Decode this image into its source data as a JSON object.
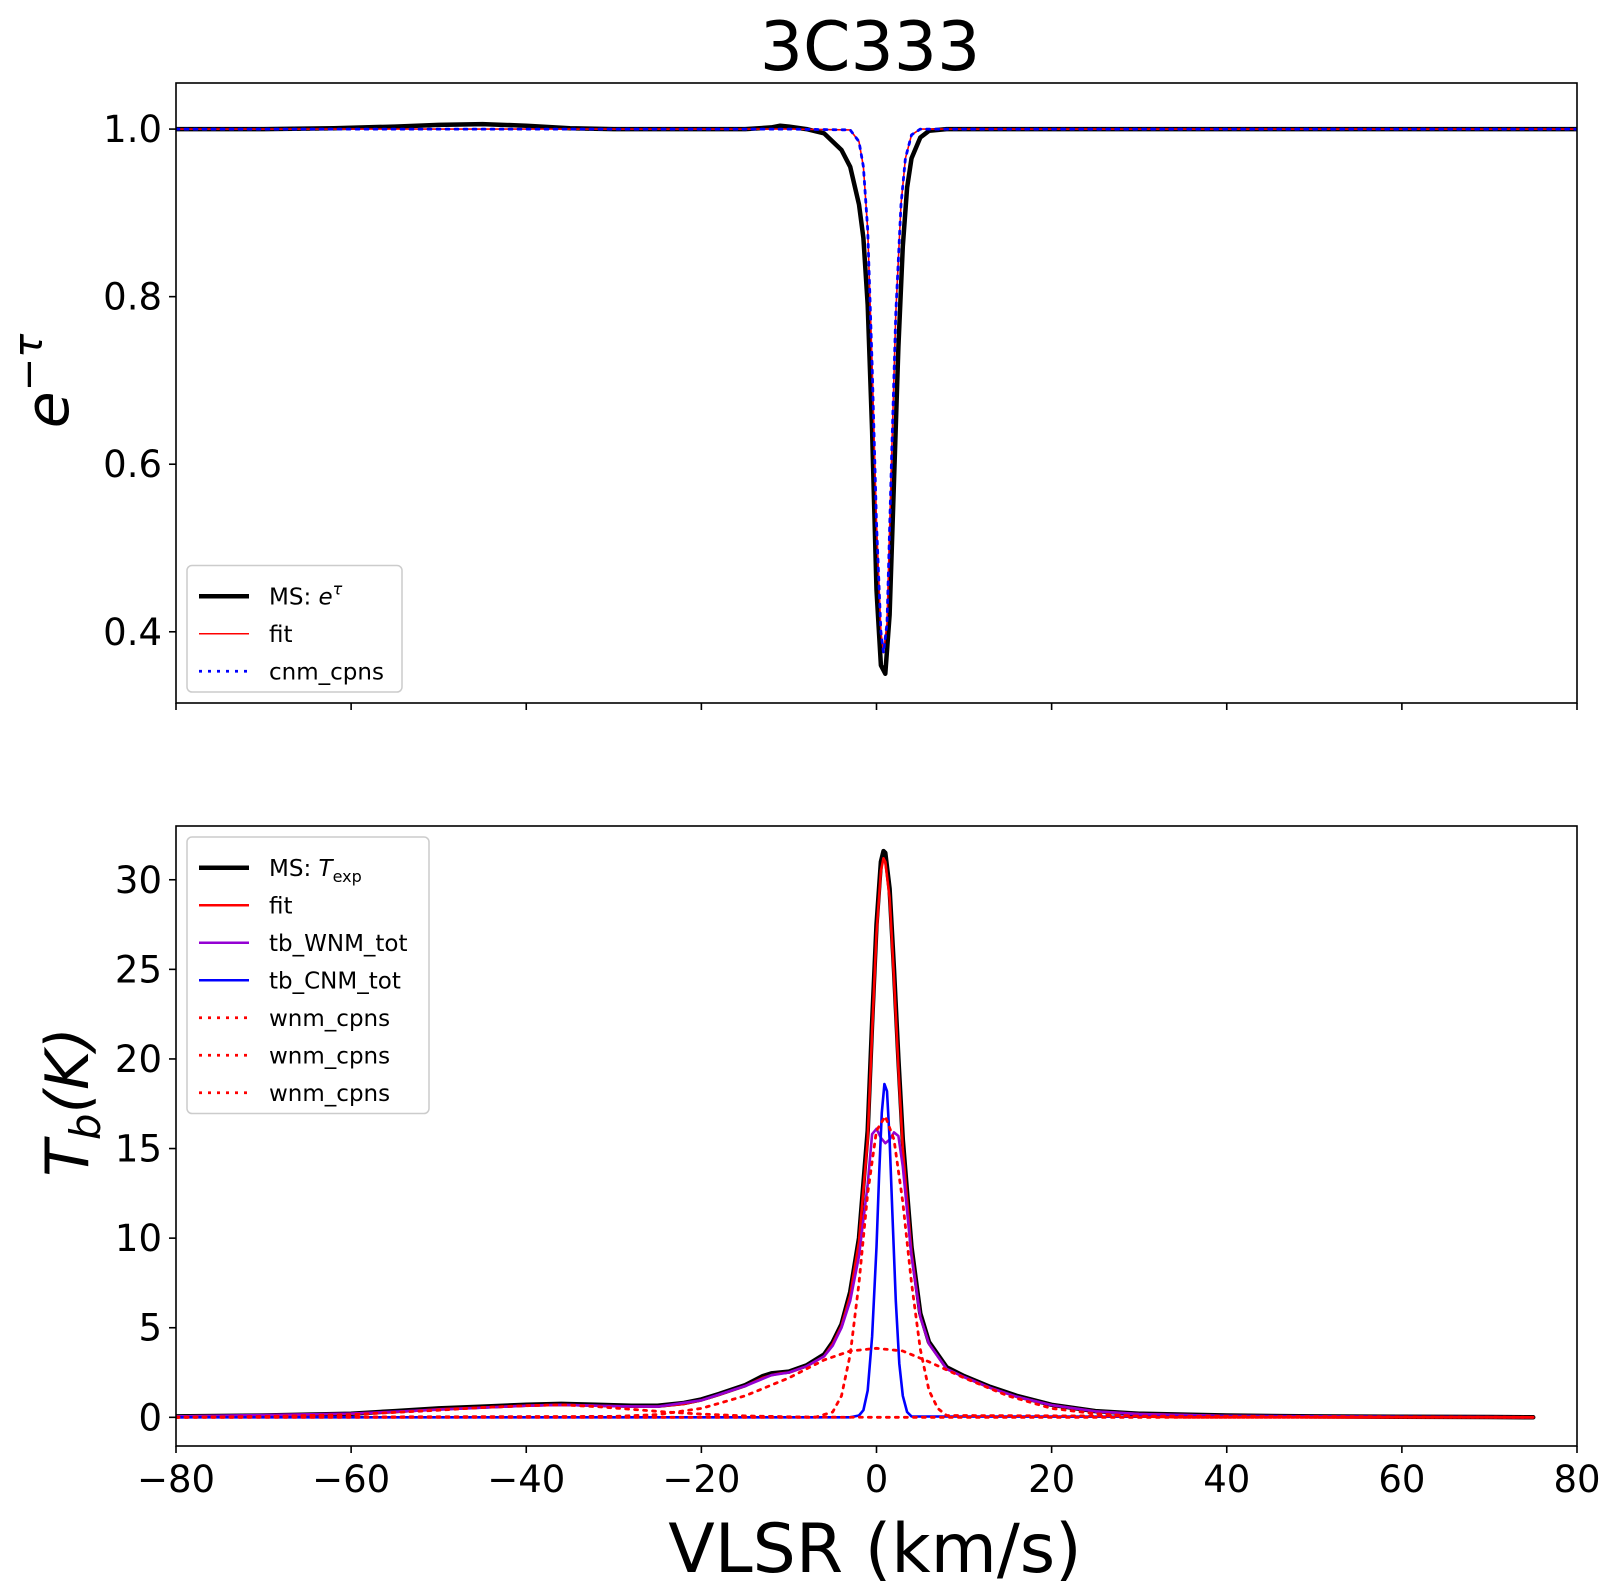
{
  "colors": {
    "ms": "#000000",
    "fit": "#ff0000",
    "cnm": "#0000ff",
    "wnm_tot": "#9400d3",
    "wnm_cpn": "#ff0000"
  },
  "chart_data": [
    {
      "type": "line",
      "title": "3C333",
      "xlabel": "",
      "ylabel": "e^{-τ}",
      "xlim": [
        -80,
        80
      ],
      "ylim": [
        0.315,
        1.055
      ],
      "xticks": [
        -80,
        -60,
        -40,
        -20,
        0,
        20,
        40,
        60,
        80
      ],
      "xtick_labels_visible": false,
      "yticks": [
        0.4,
        0.6,
        0.8,
        1.0
      ],
      "ytick_labels": [
        "0.4",
        "0.6",
        "0.8",
        "1.0"
      ],
      "grid": false,
      "legend": {
        "placement": "lower-left",
        "entries": [
          {
            "label_prefix": "MS: ",
            "label_math": "e",
            "label_sup": "τ",
            "style": "solid-thick",
            "color_key": "ms"
          },
          {
            "label": "fit",
            "style": "solid-thin",
            "color_key": "fit"
          },
          {
            "label": "cnm_cpns",
            "style": "dotted",
            "color_key": "cnm"
          }
        ]
      },
      "series": [
        {
          "name": "MS: e^τ",
          "color_key": "ms",
          "style": "solid-thick",
          "x": [
            -80,
            -70,
            -62,
            -55,
            -50,
            -45,
            -40,
            -35,
            -30,
            -25,
            -20,
            -15,
            -12,
            -11,
            -10,
            -8,
            -6,
            -4,
            -3,
            -2,
            -1.5,
            -1,
            -0.5,
            0,
            0.5,
            1,
            1.5,
            2,
            2.5,
            3,
            3.5,
            4,
            5,
            6,
            8,
            10,
            12,
            15,
            20,
            30,
            40,
            50,
            60,
            70,
            80
          ],
          "y": [
            1.0,
            1.0,
            1.001,
            1.003,
            1.005,
            1.006,
            1.004,
            1.001,
            1.0,
            1.0,
            1.0,
            1.0,
            1.002,
            1.004,
            1.003,
            1.0,
            0.995,
            0.975,
            0.955,
            0.91,
            0.87,
            0.79,
            0.64,
            0.45,
            0.36,
            0.35,
            0.42,
            0.58,
            0.74,
            0.86,
            0.93,
            0.965,
            0.99,
            0.998,
            1.0,
            1.0,
            1.0,
            1.0,
            1.0,
            1.0,
            1.0,
            1.0,
            1.0,
            1.0,
            1.0
          ]
        },
        {
          "name": "fit",
          "color_key": "fit",
          "style": "solid-thin",
          "x": [
            -80,
            -10,
            -3,
            -2,
            -1.5,
            -1,
            -0.5,
            0,
            0.5,
            0.8,
            1.2,
            1.7,
            2.2,
            2.8,
            3.3,
            4,
            5,
            10,
            80
          ],
          "y": [
            1.0,
            1.0,
            0.999,
            0.985,
            0.955,
            0.88,
            0.72,
            0.53,
            0.4,
            0.375,
            0.41,
            0.6,
            0.78,
            0.91,
            0.965,
            0.993,
            1.0,
            1.0,
            1.0
          ]
        },
        {
          "name": "cnm_cpns",
          "color_key": "cnm",
          "style": "dotted",
          "x": [
            -80,
            -10,
            -3,
            -2,
            -1.5,
            -1,
            -0.5,
            0,
            0.5,
            0.8,
            1.2,
            1.7,
            2.2,
            2.8,
            3.3,
            4,
            5,
            10,
            80
          ],
          "y": [
            1.0,
            1.0,
            0.999,
            0.985,
            0.955,
            0.88,
            0.72,
            0.53,
            0.4,
            0.375,
            0.41,
            0.6,
            0.78,
            0.91,
            0.965,
            0.993,
            1.0,
            1.0,
            1.0
          ]
        }
      ]
    },
    {
      "type": "line",
      "title": "",
      "xlabel": "VLSR (km/s)",
      "ylabel": "T_b(K)",
      "xlim": [
        -80,
        80
      ],
      "ylim": [
        -1.6,
        33.0
      ],
      "xticks": [
        -80,
        -60,
        -40,
        -20,
        0,
        20,
        40,
        60,
        80
      ],
      "xtick_labels": [
        "−80",
        "−60",
        "−40",
        "−20",
        "0",
        "20",
        "40",
        "60",
        "80"
      ],
      "yticks": [
        0,
        5,
        10,
        15,
        20,
        25,
        30
      ],
      "ytick_labels": [
        "0",
        "5",
        "10",
        "15",
        "20",
        "25",
        "30"
      ],
      "grid": false,
      "legend": {
        "placement": "upper-left",
        "entries": [
          {
            "label_prefix": "MS: ",
            "label_math": "T",
            "label_sub": "exp",
            "style": "solid-thick",
            "color_key": "ms"
          },
          {
            "label": "fit",
            "style": "solid",
            "color_key": "fit"
          },
          {
            "label": "tb_WNM_tot",
            "style": "solid",
            "color_key": "wnm_tot"
          },
          {
            "label": "tb_CNM_tot",
            "style": "solid",
            "color_key": "cnm"
          },
          {
            "label": "wnm_cpns",
            "style": "dotted",
            "color_key": "wnm_cpn"
          },
          {
            "label": "wnm_cpns",
            "style": "dotted",
            "color_key": "wnm_cpn"
          },
          {
            "label": "wnm_cpns",
            "style": "dotted",
            "color_key": "wnm_cpn"
          }
        ]
      },
      "series": [
        {
          "name": "MS: T_exp",
          "color_key": "ms",
          "style": "solid-thick",
          "x": [
            -80,
            -70,
            -60,
            -55,
            -50,
            -45,
            -40,
            -36,
            -32,
            -28,
            -25,
            -22,
            -20,
            -18,
            -15,
            -13,
            -12,
            -11,
            -10,
            -8,
            -6,
            -5,
            -4,
            -3,
            -2,
            -1,
            -0.5,
            0,
            0.5,
            0.8,
            1,
            1.5,
            2,
            2.5,
            3,
            4,
            5,
            6,
            8,
            10,
            13,
            16,
            20,
            25,
            30,
            40,
            50,
            60,
            70,
            75
          ],
          "y": [
            0.05,
            0.1,
            0.2,
            0.35,
            0.5,
            0.6,
            0.7,
            0.75,
            0.7,
            0.65,
            0.65,
            0.8,
            1.0,
            1.3,
            1.8,
            2.3,
            2.45,
            2.5,
            2.55,
            2.9,
            3.5,
            4.2,
            5.2,
            7.0,
            10.0,
            16.0,
            22.0,
            27.5,
            31.0,
            31.6,
            31.5,
            29.5,
            25.0,
            20.0,
            15.5,
            9.5,
            5.8,
            4.2,
            2.8,
            2.3,
            1.7,
            1.2,
            0.7,
            0.35,
            0.2,
            0.1,
            0.05,
            0.03,
            0.02,
            0.0
          ]
        },
        {
          "name": "fit",
          "color_key": "fit",
          "style": "solid",
          "x": [
            -80,
            -70,
            -60,
            -55,
            -50,
            -45,
            -40,
            -36,
            -32,
            -28,
            -25,
            -22,
            -20,
            -18,
            -15,
            -13,
            -12,
            -11,
            -10,
            -8,
            -6,
            -5,
            -4,
            -3,
            -2,
            -1,
            -0.5,
            0,
            0.5,
            0.8,
            1,
            1.5,
            2,
            2.5,
            3,
            4,
            5,
            6,
            8,
            10,
            13,
            16,
            20,
            25,
            30,
            40,
            50,
            60,
            70,
            75
          ],
          "y": [
            0.05,
            0.1,
            0.2,
            0.3,
            0.45,
            0.55,
            0.65,
            0.7,
            0.65,
            0.6,
            0.6,
            0.75,
            0.95,
            1.25,
            1.75,
            2.2,
            2.35,
            2.45,
            2.5,
            2.85,
            3.4,
            4.1,
            5.1,
            6.8,
            9.8,
            15.5,
            21.5,
            27.0,
            30.5,
            31.2,
            31.0,
            29.0,
            24.5,
            19.5,
            15.0,
            9.2,
            5.6,
            4.1,
            2.7,
            2.25,
            1.65,
            1.15,
            0.68,
            0.33,
            0.18,
            0.08,
            0.04,
            0.02,
            0.01,
            0.0
          ]
        },
        {
          "name": "tb_WNM_tot",
          "color_key": "wnm_tot",
          "style": "solid",
          "x": [
            -80,
            -60,
            -40,
            -36,
            -30,
            -25,
            -20,
            -15,
            -12,
            -10,
            -8,
            -6,
            -5,
            -4,
            -3,
            -2,
            -1,
            -0.5,
            0,
            0.5,
            1,
            1.5,
            2,
            2.5,
            3,
            3.5,
            4,
            5,
            6,
            8,
            10,
            13,
            16,
            20,
            25,
            30,
            40,
            75
          ],
          "y": [
            0.05,
            0.2,
            0.65,
            0.7,
            0.62,
            0.6,
            0.95,
            1.75,
            2.35,
            2.5,
            2.85,
            3.4,
            4.0,
            5.0,
            6.5,
            9.0,
            13.0,
            15.8,
            16.1,
            15.6,
            15.3,
            15.5,
            15.9,
            15.7,
            14.0,
            11.5,
            9.0,
            5.6,
            4.1,
            2.7,
            2.25,
            1.65,
            1.15,
            0.68,
            0.33,
            0.18,
            0.08,
            0.0
          ]
        },
        {
          "name": "tb_CNM_tot",
          "color_key": "cnm",
          "style": "solid",
          "x": [
            -80,
            -3,
            -2,
            -1.5,
            -1,
            -0.5,
            0,
            0.3,
            0.6,
            0.9,
            1.2,
            1.5,
            1.8,
            2.2,
            2.6,
            3,
            3.5,
            4,
            75
          ],
          "y": [
            0.0,
            0.0,
            0.1,
            0.4,
            1.5,
            4.5,
            9.5,
            13.5,
            17.0,
            18.6,
            18.2,
            15.5,
            11.5,
            6.5,
            3.0,
            1.2,
            0.3,
            0.05,
            0.0
          ]
        },
        {
          "name": "wnm_cpns",
          "color_key": "wnm_cpn",
          "style": "dotted",
          "x": [
            -80,
            -7,
            -5,
            -4,
            -3,
            -2,
            -1,
            0,
            1,
            2,
            3,
            4,
            5,
            6,
            7,
            8,
            75
          ],
          "y": [
            0.0,
            0.0,
            0.3,
            1.2,
            3.5,
            7.5,
            12.5,
            16.0,
            16.8,
            15.5,
            12.0,
            7.5,
            3.8,
            1.5,
            0.5,
            0.1,
            0.0
          ]
        },
        {
          "name": "wnm_cpns",
          "color_key": "wnm_cpn",
          "style": "dotted",
          "x": [
            -80,
            -30,
            -25,
            -20,
            -15,
            -10,
            -6,
            -3,
            0,
            3,
            6,
            10,
            15,
            20,
            25,
            30,
            35,
            75
          ],
          "y": [
            0.0,
            0.05,
            0.15,
            0.5,
            1.2,
            2.2,
            3.2,
            3.7,
            3.85,
            3.7,
            3.1,
            2.2,
            1.2,
            0.5,
            0.2,
            0.05,
            0.0,
            0.0
          ]
        },
        {
          "name": "wnm_cpns",
          "color_key": "wnm_cpn",
          "style": "dotted",
          "x": [
            -80,
            -70,
            -60,
            -50,
            -45,
            -40,
            -36,
            -32,
            -28,
            -24,
            -20,
            -15,
            -10,
            -5,
            0,
            75
          ],
          "y": [
            0.0,
            0.05,
            0.15,
            0.4,
            0.55,
            0.65,
            0.7,
            0.6,
            0.45,
            0.3,
            0.18,
            0.08,
            0.03,
            0.01,
            0.0,
            0.0
          ]
        }
      ]
    }
  ]
}
